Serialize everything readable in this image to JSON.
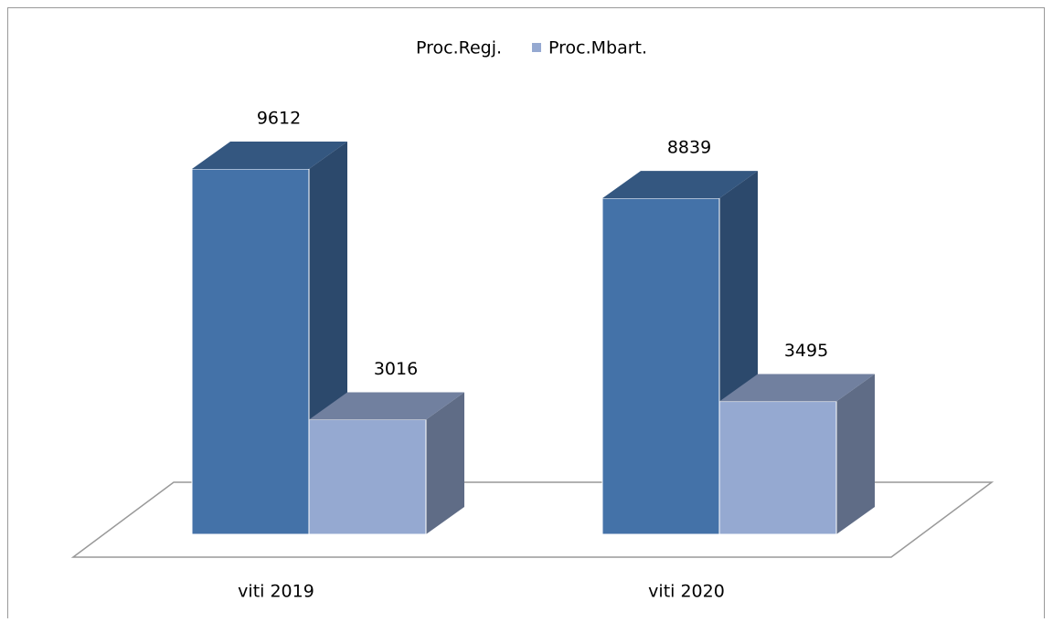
{
  "chart_data": {
    "type": "bar",
    "categories": [
      "viti 2019",
      "viti 2020"
    ],
    "series": [
      {
        "name": "Proc.Regj.",
        "color": "#4472a8",
        "values": [
          9612,
          8839
        ]
      },
      {
        "name": "Proc.Mbart.",
        "color": "#95a9d1",
        "values": [
          3016,
          3495
        ]
      }
    ]
  }
}
